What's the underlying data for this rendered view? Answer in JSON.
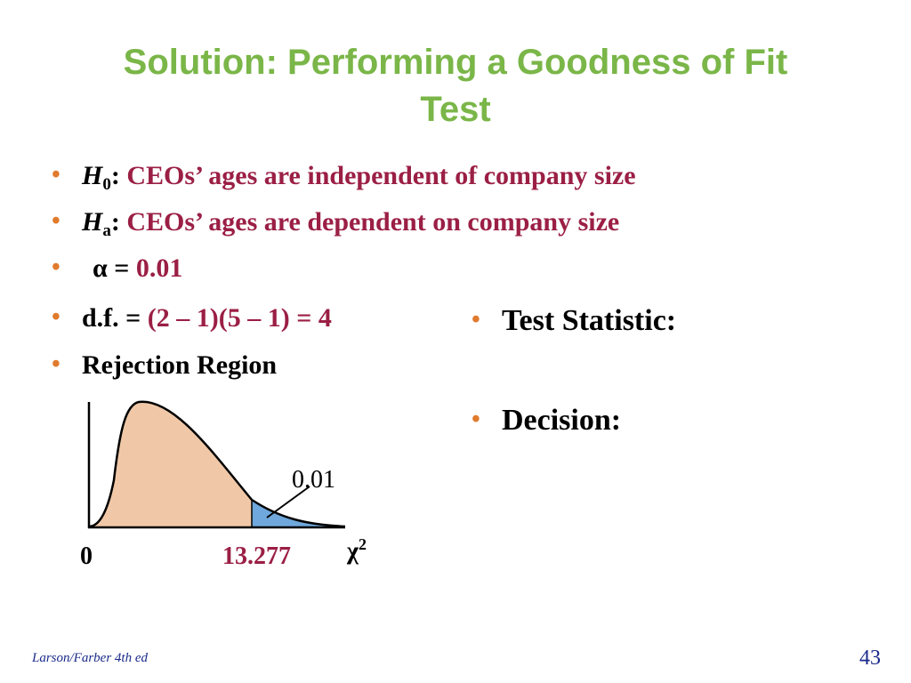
{
  "title": {
    "line1": "Solution: Performing a Goodness of Fit",
    "line2": "Test"
  },
  "bullets": {
    "h0_symbol": "H",
    "h0_sub": "0",
    "h0_colon": ":",
    "h0_text": "CEOs’ ages are independent of company size",
    "ha_symbol": "H",
    "ha_sub": "a",
    "ha_colon": ":",
    "ha_text": "CEOs’ ages are dependent on company size",
    "alpha_label": "α =",
    "alpha_value": "0.01",
    "df_label": "d.f. =",
    "df_value": "(2 – 1)(5 – 1) = 4",
    "rejection_label": "Rejection Region",
    "test_statistic_label": "Test Statistic:",
    "decision_label": "Decision:"
  },
  "graph": {
    "area_label": "0.01",
    "axis_symbol": "χ",
    "axis_superscript": "2",
    "origin_label": "0",
    "critical_value": "13.277",
    "colors": {
      "body_fill": "#f0c8a8",
      "tail_fill": "#6fa8dc"
    }
  },
  "footer": {
    "source": "Larson/Farber 4th ed",
    "page_number": "43"
  }
}
